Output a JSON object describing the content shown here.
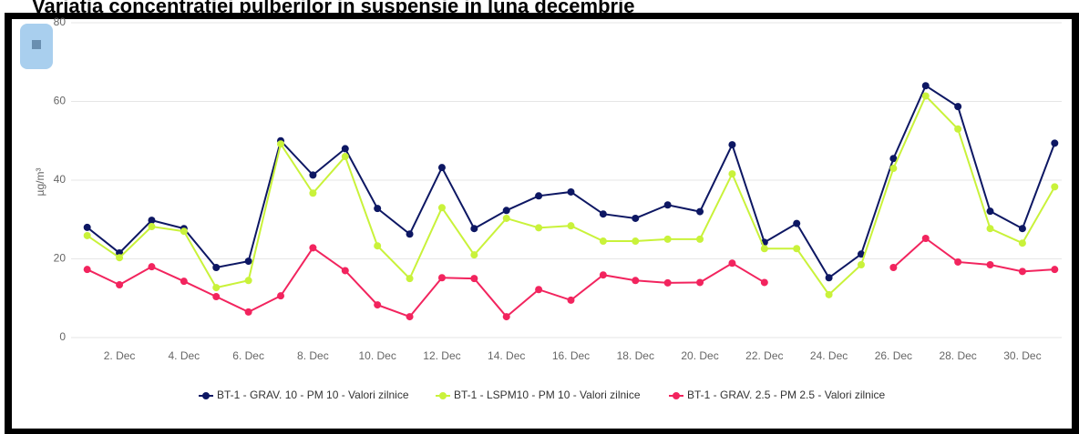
{
  "chart_data": {
    "type": "line",
    "title": "Variatia concentratiei pulberilor in suspensie in luna decembrie",
    "ylabel": "µg/m³",
    "categories": [
      null,
      "2. Dec",
      null,
      "4. Dec",
      null,
      "6. Dec",
      null,
      "8. Dec",
      null,
      "10. Dec",
      null,
      "12. Dec",
      null,
      "14. Dec",
      null,
      "16. Dec",
      null,
      "18. Dec",
      null,
      "20. Dec",
      null,
      "22. Dec",
      null,
      "24. Dec",
      null,
      "26. Dec",
      null,
      "28. Dec",
      null,
      "30. Dec",
      null
    ],
    "series": [
      {
        "name": "BT-1 - GRAV. 10 - PM 10 - Valori zilnice",
        "color": "#0d1763",
        "values": [
          28,
          21.5,
          29.8,
          27.7,
          17.8,
          19.4,
          50,
          41.3,
          48,
          32.8,
          26.3,
          43.2,
          27.7,
          32.3,
          36,
          37,
          31.4,
          30.3,
          33.7,
          32,
          49,
          24.2,
          29,
          15.2,
          21.2,
          45.5,
          64,
          58.7,
          32.1,
          27.7,
          49.4
        ]
      },
      {
        "name": "BT-1 - LSPM10 - PM 10 - Valori zilnice",
        "color": "#c9f23a",
        "values": [
          25.9,
          20.3,
          28.2,
          27,
          12.7,
          14.5,
          49.2,
          36.7,
          46,
          23.3,
          15,
          33,
          21,
          30.3,
          27.9,
          28.4,
          24.5,
          24.5,
          25,
          25,
          41.6,
          22.6,
          22.6,
          10.9,
          18.5,
          43,
          61.4,
          53,
          27.7,
          24,
          38.3
        ]
      },
      {
        "name": "BT-1 - GRAV. 2.5 - PM 2.5 - Valori zilnice",
        "color": "#f2245e",
        "values": [
          17.3,
          13.4,
          18,
          14.3,
          10.4,
          6.5,
          10.6,
          22.8,
          17,
          8.3,
          5.3,
          15.2,
          15,
          5.3,
          12.2,
          9.5,
          15.9,
          14.5,
          13.9,
          14,
          18.9,
          14,
          null,
          null,
          null,
          17.8,
          25.2,
          19.2,
          18.5,
          16.8,
          17.3
        ]
      }
    ],
    "ylim": [
      0,
      80
    ],
    "yticks": [
      0,
      20,
      40,
      60,
      80
    ],
    "grid": true
  }
}
